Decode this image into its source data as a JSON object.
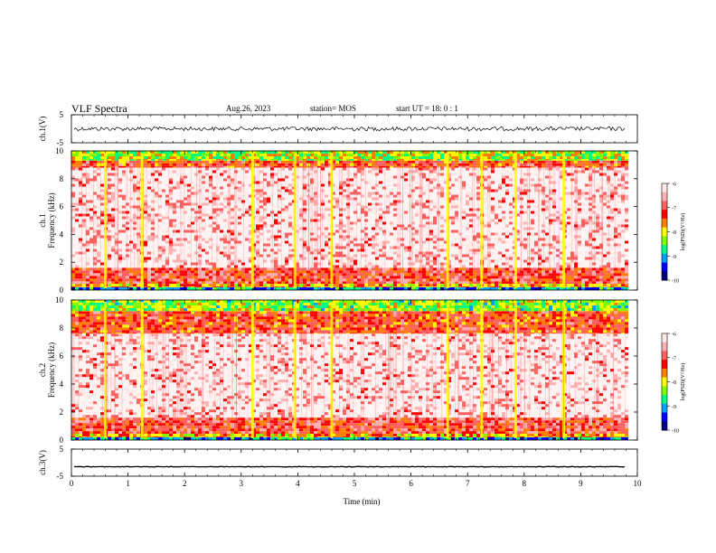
{
  "header": {
    "title": "VLF Spectra",
    "date": "Aug.26, 2023",
    "station": "station= MOS",
    "start_ut": "start  UT =   18: 0  : 1"
  },
  "colorbar": {
    "label": "log(PSD)(V²/Hz)",
    "ticks": [
      "-6",
      "-7",
      "-8",
      "-9",
      "-10"
    ],
    "colors": [
      "#000080",
      "#0000ff",
      "#00a0ff",
      "#00ff80",
      "#80ff00",
      "#ffff00",
      "#ff8000",
      "#ff0000",
      "#ff6060",
      "#ffb0b0",
      "#ffe8e8"
    ]
  },
  "chart_data": [
    {
      "type": "line",
      "panel": "ch1-waveform",
      "ylabel": "ch.1(V)",
      "ylim": [
        -5,
        5
      ],
      "y_tick_labels": [
        "5",
        "-5"
      ],
      "baseline": 0
    },
    {
      "type": "heatmap",
      "panel": "ch1-spectrogram",
      "ylabel": "ch.1\nFrequency (kHz)",
      "ylim": [
        0,
        10
      ],
      "y_tick_labels": [
        "0",
        "2",
        "4",
        "6",
        "8",
        "10"
      ],
      "xlim": [
        0,
        10
      ],
      "bands": [
        {
          "from": 0,
          "to": 0.2,
          "level": 0.8
        },
        {
          "from": 0.2,
          "to": 0.45,
          "level": 0.45
        },
        {
          "from": 0.45,
          "to": 1.6,
          "level": 0.25
        },
        {
          "from": 1.6,
          "to": 8.8,
          "level": 0.1
        },
        {
          "from": 8.8,
          "to": 9.3,
          "level": 0.3
        },
        {
          "from": 9.3,
          "to": 10,
          "level": 0.55
        }
      ],
      "bursts_min": [
        0.6,
        1.25,
        3.2,
        3.95,
        4.6,
        6.65,
        7.25,
        7.85,
        8.7
      ]
    },
    {
      "type": "heatmap",
      "panel": "ch2-spectrogram",
      "ylabel": "ch.2\nFrequency (kHz)",
      "ylim": [
        0,
        10
      ],
      "y_tick_labels": [
        "0",
        "2",
        "4",
        "6",
        "8",
        "10"
      ],
      "xlim": [
        0,
        10
      ],
      "bands": [
        {
          "from": 0,
          "to": 0.2,
          "level": 0.8
        },
        {
          "from": 0.2,
          "to": 0.45,
          "level": 0.45
        },
        {
          "from": 0.45,
          "to": 1.6,
          "level": 0.25
        },
        {
          "from": 1.6,
          "to": 7.6,
          "level": 0.1
        },
        {
          "from": 7.6,
          "to": 9.2,
          "level": 0.3
        },
        {
          "from": 9.2,
          "to": 10,
          "level": 0.6
        }
      ],
      "bursts_min": [
        0.6,
        1.25,
        3.2,
        3.95,
        4.6,
        6.65,
        7.25,
        7.85,
        8.7
      ]
    },
    {
      "type": "line",
      "panel": "ch3-waveform",
      "ylabel": "ch.3(V)",
      "ylim": [
        -5,
        5
      ],
      "y_tick_labels": [
        "5",
        "-5"
      ],
      "baseline": -1.5,
      "xlabel": "Time  (min)",
      "xlim": [
        0,
        10
      ],
      "x_tick_labels": [
        "0",
        "1",
        "2",
        "3",
        "4",
        "5",
        "6",
        "7",
        "8",
        "9",
        "10"
      ]
    }
  ]
}
